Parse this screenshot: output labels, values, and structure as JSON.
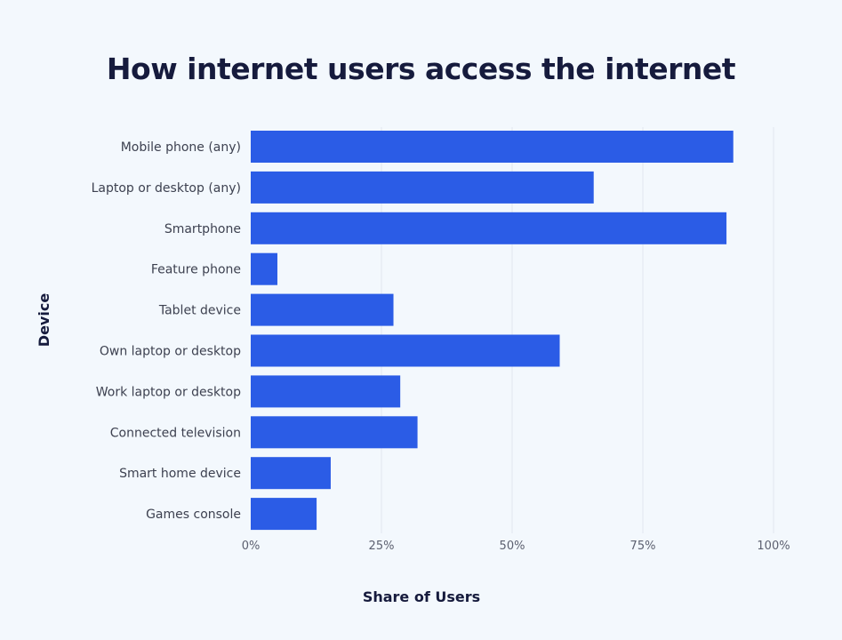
{
  "chart_data": {
    "type": "bar",
    "orientation": "horizontal",
    "title": "How internet users access the internet",
    "xlabel": "Share of Users",
    "ylabel": "Device",
    "categories": [
      "Mobile phone (any)",
      "Laptop or desktop (any)",
      "Smartphone",
      "Feature phone",
      "Tablet device",
      "Own laptop or desktop",
      "Work laptop or desktop",
      "Connected television",
      "Smart home device",
      "Games console"
    ],
    "values": [
      92.3,
      65.6,
      91.0,
      5.1,
      27.3,
      59.1,
      28.6,
      31.9,
      15.3,
      12.6
    ],
    "xlim": [
      0,
      100
    ],
    "xticks": [
      0,
      25,
      50,
      75,
      100
    ],
    "xtick_labels": [
      "0%",
      "25%",
      "50%",
      "75%",
      "100%"
    ],
    "grid": true,
    "bar_color": "#2b5ce6"
  }
}
